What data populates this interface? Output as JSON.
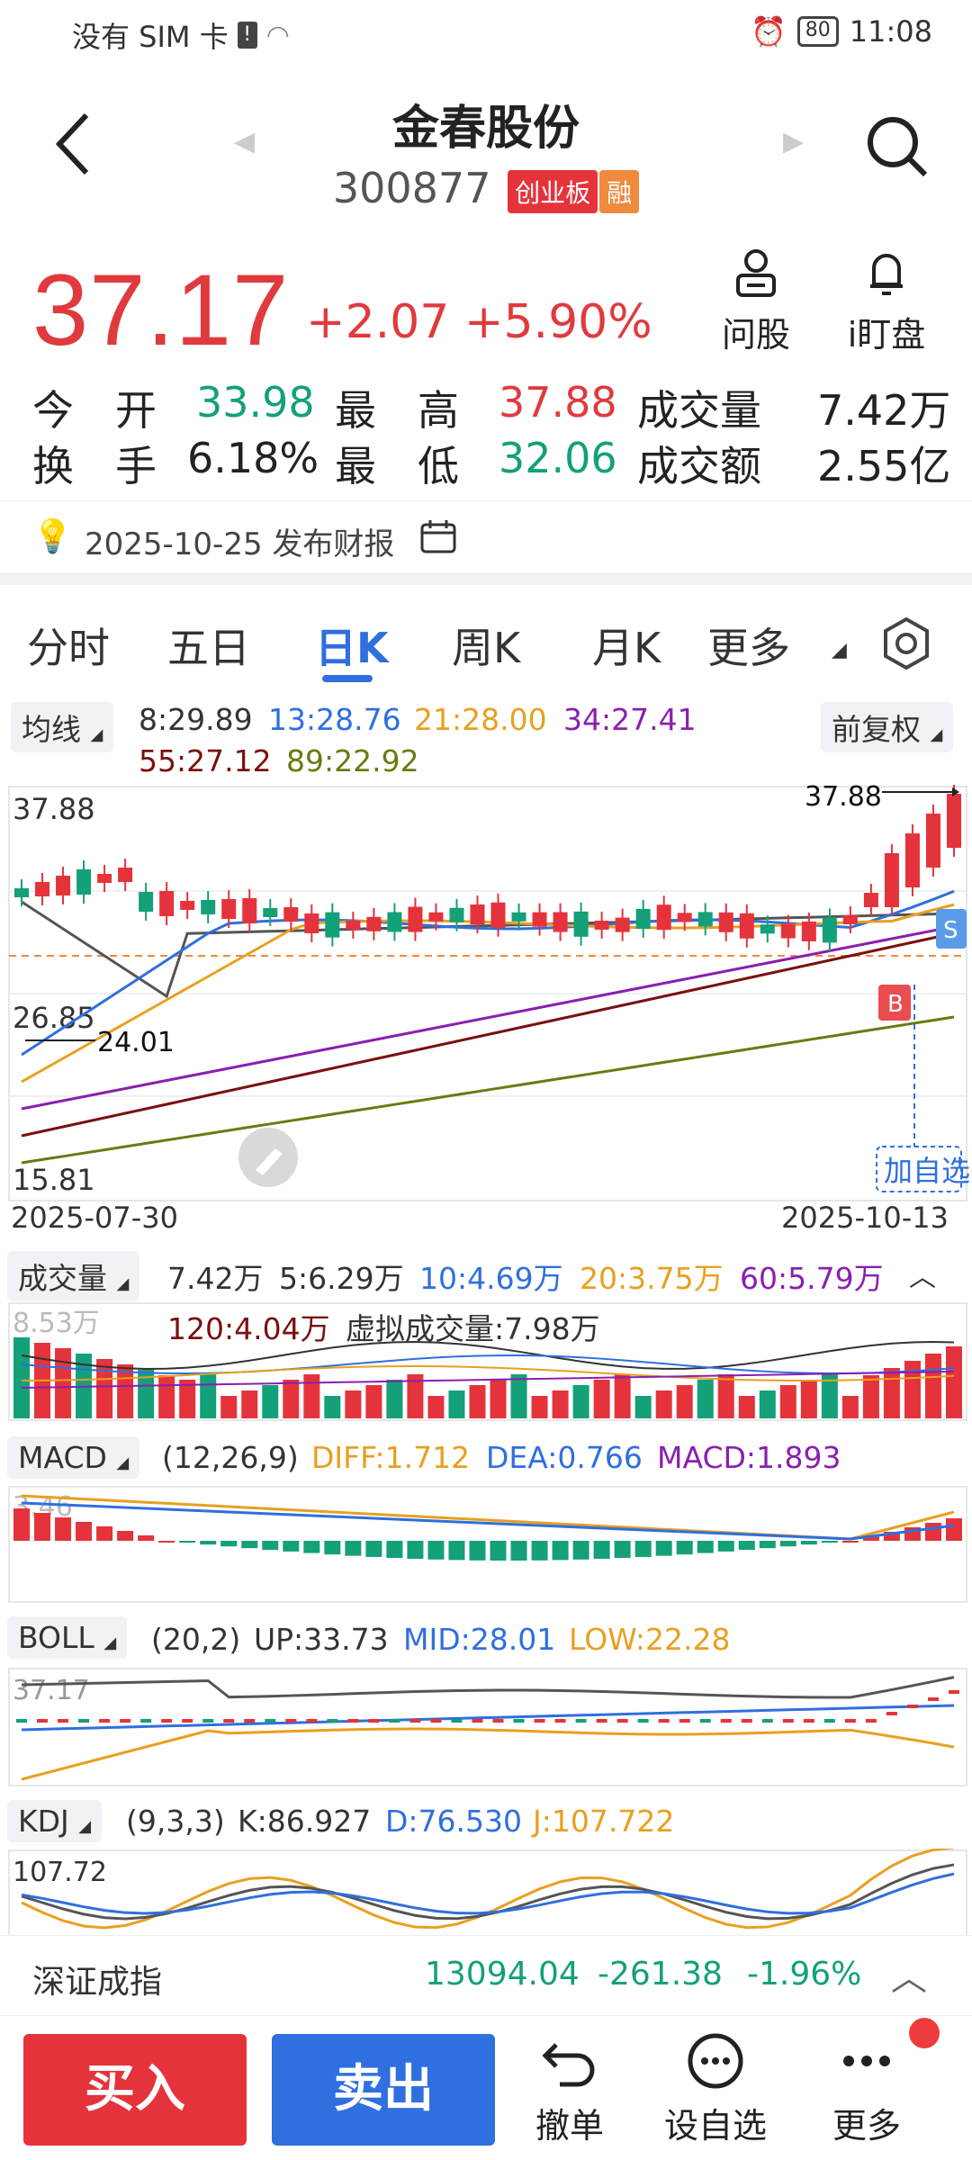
{
  "status": {
    "carrier": "没有 SIM 卡",
    "battery": "80",
    "time": "11:08"
  },
  "header": {
    "title": "金春股份",
    "code": "300877",
    "board_tag": "创业板",
    "margin_tag": "融"
  },
  "quote": {
    "price": "37.17",
    "change": "+2.07",
    "change_pct": "+5.90%",
    "ask_label": "问股",
    "watch_label": "i盯盘",
    "open_label": "今　开",
    "open": "33.98",
    "high_label": "最　高",
    "high": "37.88",
    "volume_label": "成交量",
    "volume": "7.42万",
    "turnover_label": "换　手",
    "turnover": "6.18%",
    "low_label": "最　低",
    "low": "32.06",
    "amount_label": "成交额",
    "amount": "2.55亿"
  },
  "notice": {
    "text": "2025-10-25 发布财报"
  },
  "tabs": [
    "分时",
    "五日",
    "日K",
    "周K",
    "月K",
    "更多"
  ],
  "ma": {
    "selector": "均线",
    "adjust": "前复权",
    "ma8": "8:29.89",
    "ma13": "13:28.76",
    "ma21": "21:28.00",
    "ma34": "34:27.41",
    "ma55": "55:27.12",
    "ma89": "89:22.92"
  },
  "kchart": {
    "y_top": "37.88",
    "y_mid": "26.85",
    "y_bottom": "15.81",
    "max_label": "37.88",
    "min_label": "24.01",
    "date_start": "2025-07-30",
    "date_end": "2025-10-13",
    "add_watch": "加自选",
    "b_marker": "B",
    "s_marker": "S"
  },
  "volume": {
    "label": "成交量",
    "v": "7.42万",
    "v5": "5:6.29万",
    "v10": "10:4.69万",
    "v20": "20:3.75万",
    "v60": "60:5.79万",
    "v120": "120:4.04万",
    "virtual": "虚拟成交量:7.98万",
    "axis": "8.53万"
  },
  "macd": {
    "label": "MACD",
    "params": "(12,26,9)",
    "diff": "DIFF:1.712",
    "dea": "DEA:0.766",
    "macd": "MACD:1.893",
    "axis": "3.46"
  },
  "boll": {
    "label": "BOLL",
    "params": "(20,2)",
    "up": "UP:33.73",
    "mid": "MID:28.01",
    "low": "LOW:22.28",
    "axis": "37.17"
  },
  "kdj": {
    "label": "KDJ",
    "params": "(9,3,3)",
    "k": "K:86.927",
    "d": "D:76.530",
    "j": "J:107.722",
    "axis": "107.72"
  },
  "index": {
    "name": "深证成指",
    "value": "13094.04",
    "change": "-261.38",
    "pct": "-1.96%"
  },
  "bottom": {
    "buy": "买入",
    "sell": "卖出",
    "cancel": "撤单",
    "add_watch": "设自选",
    "more": "更多"
  },
  "colors": {
    "red": "#e03a3e",
    "green": "#14a079",
    "blue": "#2f6fde",
    "buy_bg": "#e5333b",
    "sell_bg": "#2f6fe0"
  }
}
